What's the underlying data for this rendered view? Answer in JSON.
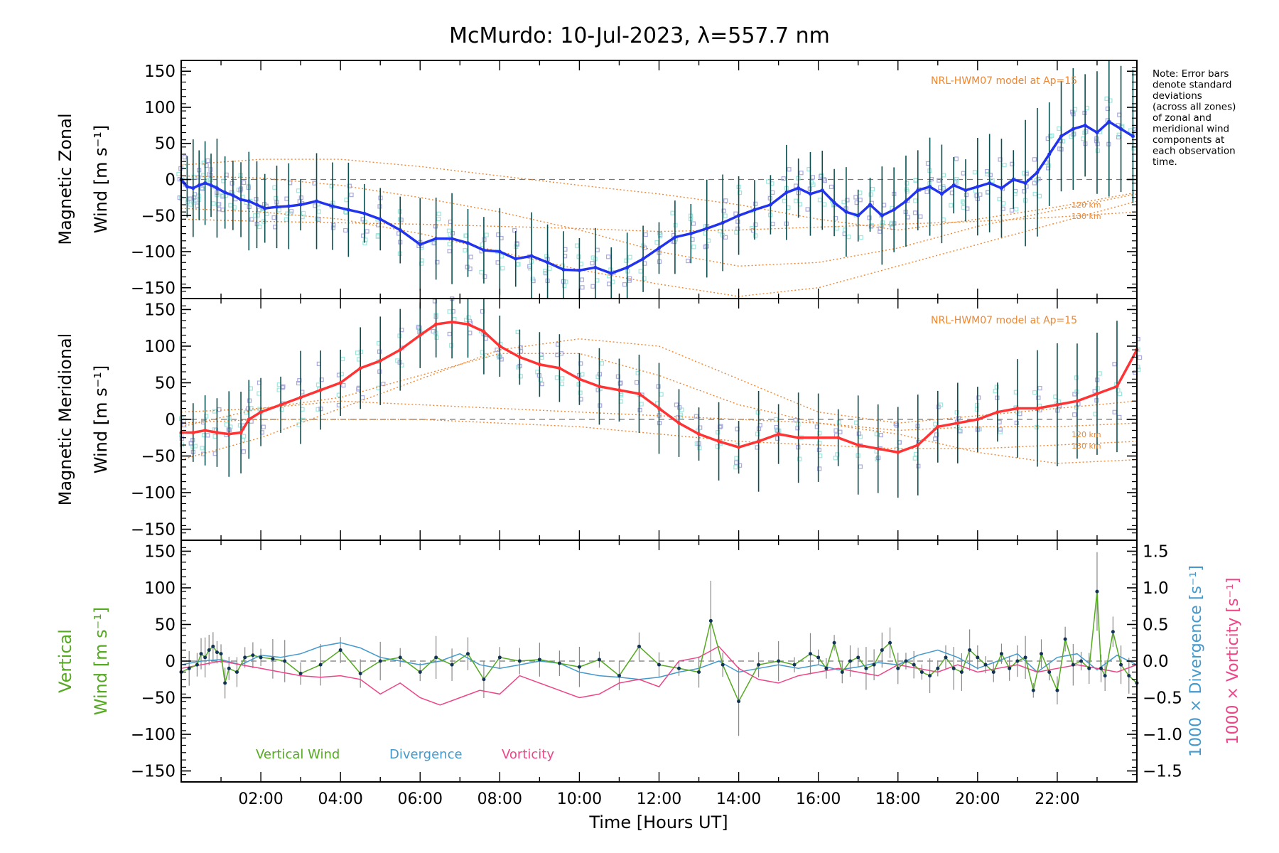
{
  "chart_data": [
    {
      "type": "line",
      "title": "McMurdo: 10-Jul-2023, λ=557.7 nm",
      "ylabel_line1": "Magnetic Zonal",
      "ylabel_line2": "Wind [m s⁻¹]",
      "xlim": [
        0,
        24
      ],
      "ylim": [
        -165,
        165
      ],
      "yticks": [
        -150,
        -100,
        -50,
        0,
        50,
        100,
        150
      ],
      "model_label": "NRL-HWM07 model at Ap=15",
      "altitude_labels": [
        "120 km",
        "130 km"
      ],
      "note": [
        "Note: Error bars",
        "denote standard",
        "deviations",
        "(across all zones)",
        "of zonal and",
        "meridional wind",
        "components at",
        "each observation",
        "time."
      ],
      "colors": {
        "series": "#2233ee",
        "model": "#ee8833",
        "errorbar": "#0a5050",
        "scatter_a": "#9fe6dc",
        "scatter_b": "#aaaadd"
      },
      "series": [
        {
          "name": "Zonal wind",
          "x": [
            0.0,
            0.15,
            0.3,
            0.45,
            0.6,
            0.75,
            0.9,
            1.1,
            1.3,
            1.5,
            1.7,
            1.9,
            2.1,
            2.4,
            2.7,
            3.0,
            3.4,
            3.8,
            4.2,
            4.6,
            5.0,
            5.5,
            6.0,
            6.4,
            6.8,
            7.2,
            7.6,
            8.0,
            8.4,
            8.8,
            9.2,
            9.6,
            10.0,
            10.4,
            10.8,
            11.2,
            11.6,
            12.0,
            12.4,
            12.8,
            13.2,
            13.6,
            14.0,
            14.4,
            14.8,
            15.2,
            15.5,
            15.8,
            16.1,
            16.4,
            16.7,
            17.0,
            17.3,
            17.6,
            17.9,
            18.2,
            18.5,
            18.8,
            19.1,
            19.4,
            19.7,
            20.0,
            20.3,
            20.6,
            20.9,
            21.2,
            21.5,
            21.8,
            22.1,
            22.4,
            22.7,
            23.0,
            23.3,
            23.6,
            23.9
          ],
          "y": [
            0,
            -10,
            -12,
            -8,
            -5,
            -8,
            -12,
            -18,
            -22,
            -28,
            -30,
            -35,
            -40,
            -38,
            -37,
            -35,
            -30,
            -37,
            -42,
            -47,
            -55,
            -70,
            -90,
            -82,
            -82,
            -88,
            -98,
            -100,
            -110,
            -106,
            -115,
            -125,
            -126,
            -122,
            -130,
            -122,
            -110,
            -95,
            -80,
            -75,
            -68,
            -60,
            -50,
            -42,
            -35,
            -18,
            -12,
            -20,
            -15,
            -32,
            -45,
            -50,
            -35,
            -50,
            -42,
            -30,
            -15,
            -10,
            -20,
            -8,
            -15,
            -10,
            -5,
            -12,
            0,
            -5,
            10,
            35,
            60,
            70,
            75,
            65,
            80,
            70,
            60
          ]
        }
      ],
      "model_curves": [
        {
          "x": [
            0,
            2,
            4,
            6,
            8,
            10,
            12,
            14,
            16,
            18,
            20,
            22,
            24
          ],
          "y": [
            20,
            28,
            28,
            18,
            5,
            -8,
            -20,
            -35,
            -55,
            -70,
            -55,
            -38,
            -18
          ]
        },
        {
          "x": [
            0,
            2,
            4,
            6,
            8,
            10,
            12,
            14,
            16,
            18,
            20,
            22,
            24
          ],
          "y": [
            5,
            2,
            -8,
            -25,
            -45,
            -70,
            -100,
            -120,
            -115,
            -95,
            -65,
            -42,
            -20
          ]
        },
        {
          "x": [
            0,
            2,
            4,
            6,
            8,
            10,
            12,
            14,
            16,
            18,
            20,
            22,
            24
          ],
          "y": [
            -40,
            -45,
            -55,
            -75,
            -100,
            -125,
            -145,
            -162,
            -150,
            -120,
            -90,
            -60,
            -30
          ]
        },
        {
          "x": [
            0,
            2,
            4,
            6,
            8,
            10,
            12,
            14,
            16,
            18,
            20,
            22,
            24
          ],
          "y": [
            -55,
            -58,
            -60,
            -62,
            -65,
            -68,
            -72,
            -70,
            -66,
            -62,
            -58,
            -52,
            -45
          ]
        }
      ]
    },
    {
      "type": "line",
      "ylabel_line1": "Magnetic Meridional",
      "ylabel_line2": "Wind [m s⁻¹]",
      "xlim": [
        0,
        24
      ],
      "ylim": [
        -165,
        165
      ],
      "yticks": [
        -150,
        -100,
        -50,
        0,
        50,
        100,
        150
      ],
      "model_label": "NRL-HWM07 model at Ap=15",
      "altitude_labels": [
        "120 km",
        "130 km"
      ],
      "colors": {
        "series": "#ff3333",
        "model": "#ee8833",
        "errorbar": "#0a5050",
        "scatter_a": "#9fe6dc",
        "scatter_b": "#aaaadd"
      },
      "series": [
        {
          "name": "Meridional wind",
          "x": [
            0.0,
            0.3,
            0.6,
            0.9,
            1.2,
            1.5,
            1.7,
            2.0,
            2.5,
            3.0,
            3.5,
            4.0,
            4.5,
            5.0,
            5.5,
            6.0,
            6.4,
            6.8,
            7.2,
            7.6,
            8.0,
            8.5,
            9.0,
            9.5,
            10.0,
            10.5,
            11.0,
            11.5,
            12.0,
            12.5,
            13.0,
            13.5,
            14.0,
            14.5,
            15.0,
            15.5,
            16.0,
            16.5,
            17.0,
            17.5,
            18.0,
            18.5,
            19.0,
            19.5,
            20.0,
            20.5,
            21.0,
            21.5,
            22.0,
            22.5,
            23.0,
            23.5,
            24.0
          ],
          "y": [
            -18,
            -18,
            -15,
            -18,
            -20,
            -18,
            0,
            10,
            20,
            30,
            40,
            50,
            70,
            80,
            95,
            115,
            130,
            133,
            130,
            120,
            100,
            85,
            75,
            70,
            55,
            45,
            40,
            35,
            15,
            -5,
            -20,
            -30,
            -38,
            -30,
            -20,
            -25,
            -25,
            -25,
            -35,
            -40,
            -45,
            -35,
            -10,
            -5,
            0,
            10,
            15,
            15,
            20,
            25,
            35,
            45,
            95
          ]
        }
      ],
      "model_curves": [
        {
          "x": [
            0,
            2,
            4,
            6,
            8,
            10,
            12,
            14,
            16,
            18,
            20,
            22,
            24
          ],
          "y": [
            -55,
            -25,
            15,
            55,
            95,
            110,
            100,
            55,
            10,
            -5,
            5,
            15,
            25
          ]
        },
        {
          "x": [
            0,
            2,
            4,
            6,
            8,
            10,
            12,
            14,
            16,
            18,
            20,
            22,
            24
          ],
          "y": [
            -10,
            15,
            30,
            60,
            90,
            90,
            60,
            20,
            -5,
            -15,
            -10,
            -10,
            -5
          ]
        },
        {
          "x": [
            0,
            2,
            4,
            6,
            8,
            10,
            12,
            14,
            16,
            18,
            20,
            22,
            24
          ],
          "y": [
            10,
            15,
            25,
            20,
            15,
            10,
            5,
            0,
            -5,
            -20,
            -45,
            -60,
            -55
          ]
        },
        {
          "x": [
            0,
            2,
            4,
            6,
            8,
            10,
            12,
            14,
            16,
            18,
            20,
            22,
            24
          ],
          "y": [
            -5,
            0,
            0,
            0,
            -5,
            -10,
            -20,
            -30,
            -35,
            -40,
            -40,
            -35,
            -30
          ]
        }
      ]
    },
    {
      "type": "line",
      "ylabel_line1": "Vertical",
      "ylabel_line2": "Wind [m s⁻¹]",
      "right_ylabel_div": "1000 × Divergence [s⁻¹]",
      "right_ylabel_vort": "1000 × Vorticity [s⁻¹]",
      "right_yticks": [
        "1.5",
        "1.0",
        "0.5",
        "0.0",
        "−0.5",
        "−1.0",
        "−1.5"
      ],
      "xlim": [
        0,
        24
      ],
      "ylim": [
        -165,
        165
      ],
      "yticks": [
        -150,
        -100,
        -50,
        0,
        50,
        100,
        150
      ],
      "xlabel": "Time [Hours UT]",
      "xtick_labels": [
        "02:00",
        "04:00",
        "06:00",
        "08:00",
        "10:00",
        "12:00",
        "14:00",
        "16:00",
        "18:00",
        "20:00",
        "22:00"
      ],
      "legend": [
        "Vertical Wind",
        "Divergence",
        "Vorticity"
      ],
      "colors": {
        "vertical": "#55aa22",
        "divergence": "#4499cc",
        "vorticity": "#ee4488",
        "errorbar": "#888888",
        "marker": "#113355"
      },
      "series": [
        {
          "name": "Vertical Wind",
          "x": [
            0.0,
            0.2,
            0.4,
            0.5,
            0.6,
            0.7,
            0.8,
            0.9,
            1.0,
            1.1,
            1.2,
            1.4,
            1.6,
            1.8,
            2.0,
            2.3,
            2.6,
            3.0,
            3.5,
            4.0,
            4.5,
            5.0,
            5.5,
            6.0,
            6.4,
            6.8,
            7.2,
            7.6,
            8.0,
            8.5,
            9.0,
            9.5,
            10.0,
            10.5,
            11.0,
            11.5,
            12.0,
            12.5,
            13.0,
            13.3,
            13.6,
            14.0,
            14.5,
            15.0,
            15.4,
            15.8,
            16.0,
            16.2,
            16.4,
            16.6,
            16.8,
            17.0,
            17.2,
            17.4,
            17.6,
            17.8,
            18.0,
            18.2,
            18.4,
            18.6,
            18.8,
            19.0,
            19.2,
            19.4,
            19.6,
            19.8,
            20.0,
            20.2,
            20.4,
            20.6,
            20.8,
            21.0,
            21.2,
            21.4,
            21.6,
            21.8,
            22.0,
            22.2,
            22.4,
            22.6,
            22.8,
            23.0,
            23.1,
            23.2,
            23.4,
            23.6,
            23.8,
            24.0
          ],
          "y": [
            -15,
            -10,
            -5,
            10,
            5,
            15,
            20,
            12,
            10,
            -30,
            -10,
            -15,
            5,
            8,
            5,
            3,
            0,
            -17,
            -5,
            15,
            -17,
            0,
            5,
            -15,
            5,
            -5,
            10,
            -25,
            5,
            0,
            2,
            -3,
            -8,
            2,
            -20,
            20,
            -5,
            -10,
            -15,
            55,
            -5,
            -55,
            -5,
            0,
            -5,
            10,
            5,
            -10,
            25,
            -15,
            0,
            5,
            -10,
            -5,
            15,
            25,
            -10,
            0,
            -5,
            -15,
            -20,
            -10,
            5,
            -10,
            -15,
            15,
            5,
            -5,
            -15,
            10,
            -10,
            0,
            5,
            -40,
            10,
            -15,
            -40,
            30,
            -5,
            0,
            -10,
            95,
            -10,
            -20,
            40,
            -5,
            -20,
            -30
          ]
        },
        {
          "name": "Divergence",
          "x": [
            0,
            0.5,
            1.0,
            1.5,
            2.0,
            2.5,
            3.0,
            3.5,
            4.0,
            4.5,
            5.0,
            5.5,
            6.0,
            6.5,
            7.0,
            7.5,
            8.0,
            8.5,
            9.0,
            9.5,
            10.0,
            10.5,
            11.0,
            11.5,
            12.0,
            12.5,
            13.0,
            13.5,
            14.0,
            14.5,
            15.0,
            15.5,
            16.0,
            16.5,
            17.0,
            17.5,
            18.0,
            18.5,
            19.0,
            19.5,
            20.0,
            20.5,
            21.0,
            21.5,
            22.0,
            22.5,
            23.0,
            23.5,
            24.0
          ],
          "y": [
            -5,
            0,
            2,
            -5,
            8,
            5,
            10,
            20,
            25,
            18,
            5,
            0,
            -5,
            0,
            10,
            -5,
            -10,
            -5,
            0,
            -3,
            -15,
            -20,
            -22,
            -25,
            -22,
            -15,
            -10,
            0,
            -15,
            -10,
            -5,
            -10,
            -5,
            -12,
            -8,
            -2,
            -5,
            8,
            15,
            5,
            -10,
            0,
            10,
            -15,
            5,
            10,
            -12,
            8,
            -5
          ]
        },
        {
          "name": "Vorticity",
          "x": [
            0,
            0.5,
            1.0,
            1.5,
            2.0,
            2.5,
            3.0,
            3.5,
            4.0,
            4.5,
            5.0,
            5.5,
            6.0,
            6.5,
            7.0,
            7.5,
            8.0,
            8.5,
            9.0,
            9.5,
            10.0,
            10.5,
            11.0,
            11.5,
            12.0,
            12.5,
            13.0,
            13.5,
            14.0,
            14.5,
            15.0,
            15.5,
            16.0,
            16.5,
            17.0,
            17.5,
            18.0,
            18.5,
            19.0,
            19.5,
            20.0,
            20.5,
            21.0,
            21.5,
            22.0,
            22.5,
            23.0,
            23.5,
            24.0
          ],
          "y": [
            -10,
            -5,
            0,
            -5,
            -10,
            -15,
            -20,
            -22,
            -20,
            -25,
            -45,
            -30,
            -50,
            -60,
            -50,
            -40,
            -45,
            -20,
            -30,
            -40,
            -50,
            -45,
            -30,
            -25,
            -35,
            0,
            5,
            20,
            -10,
            -25,
            -30,
            -20,
            -15,
            -10,
            -15,
            -20,
            -5,
            -10,
            -15,
            -5,
            -15,
            -10,
            -5,
            -15,
            -10,
            -5,
            -10,
            -15,
            -5
          ]
        }
      ]
    }
  ]
}
